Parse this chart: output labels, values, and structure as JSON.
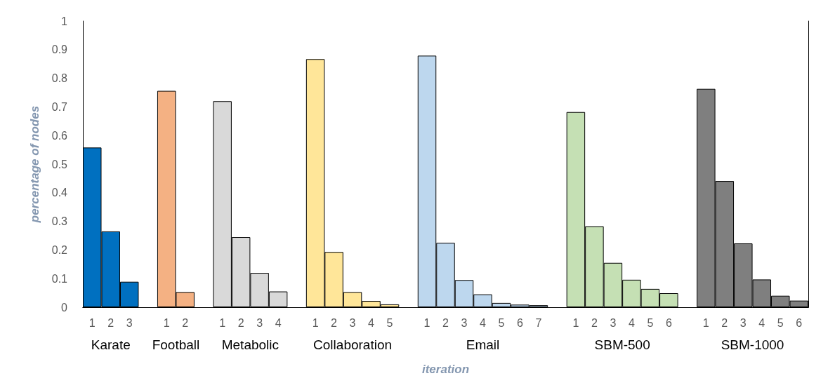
{
  "chart_data": {
    "type": "bar",
    "xlabel": "iteration",
    "ylabel": "percentage of nodes",
    "categories": [
      "1",
      "2",
      "3",
      null,
      "1",
      "2",
      null,
      "1",
      "2",
      "3",
      "4",
      null,
      "1",
      "2",
      "3",
      "4",
      "5",
      null,
      "1",
      "2",
      "3",
      "4",
      "5",
      "6",
      "7",
      null,
      "1",
      "2",
      "3",
      "4",
      "5",
      "6",
      null,
      "1",
      "2",
      "3",
      "4",
      "5",
      "6"
    ],
    "series": [
      {
        "name": "Karate",
        "color": "#0070c0",
        "values": [
          0.558,
          0.265,
          0.089,
          null,
          null,
          null,
          null,
          null,
          null,
          null,
          null,
          null,
          null,
          null,
          null,
          null,
          null,
          null,
          null,
          null,
          null,
          null,
          null,
          null,
          null,
          null,
          null,
          null,
          null,
          null,
          null,
          null,
          null,
          null,
          null,
          null,
          null,
          null,
          null
        ]
      },
      {
        "name": "Football",
        "color": "#f4b183",
        "values": [
          null,
          null,
          null,
          null,
          0.756,
          0.053,
          null,
          null,
          null,
          null,
          null,
          null,
          null,
          null,
          null,
          null,
          null,
          null,
          null,
          null,
          null,
          null,
          null,
          null,
          null,
          null,
          null,
          null,
          null,
          null,
          null,
          null,
          null,
          null,
          null,
          null,
          null,
          null,
          null
        ]
      },
      {
        "name": "Metabolic",
        "color": "#d9d9d9",
        "values": [
          null,
          null,
          null,
          null,
          null,
          null,
          null,
          0.72,
          0.245,
          0.12,
          0.055,
          null,
          null,
          null,
          null,
          null,
          null,
          null,
          null,
          null,
          null,
          null,
          null,
          null,
          null,
          null,
          null,
          null,
          null,
          null,
          null,
          null,
          null,
          null,
          null,
          null,
          null,
          null,
          null
        ]
      },
      {
        "name": "Collaboration",
        "color": "#ffe699",
        "values": [
          null,
          null,
          null,
          null,
          null,
          null,
          null,
          null,
          null,
          null,
          null,
          null,
          0.867,
          0.193,
          0.053,
          0.022,
          0.01,
          null,
          null,
          null,
          null,
          null,
          null,
          null,
          null,
          null,
          null,
          null,
          null,
          null,
          null,
          null,
          null,
          null,
          null,
          null,
          null,
          null,
          null
        ]
      },
      {
        "name": "Email",
        "color": "#bdd7ee",
        "values": [
          null,
          null,
          null,
          null,
          null,
          null,
          null,
          null,
          null,
          null,
          null,
          null,
          null,
          null,
          null,
          null,
          null,
          null,
          0.879,
          0.225,
          0.095,
          0.045,
          0.015,
          0.009,
          0.007,
          null,
          null,
          null,
          null,
          null,
          null,
          null,
          null,
          null,
          null,
          null,
          null,
          null,
          null
        ]
      },
      {
        "name": "SBM-500",
        "color": "#c5e0b4",
        "values": [
          null,
          null,
          null,
          null,
          null,
          null,
          null,
          null,
          null,
          null,
          null,
          null,
          null,
          null,
          null,
          null,
          null,
          null,
          null,
          null,
          null,
          null,
          null,
          null,
          null,
          null,
          0.682,
          0.283,
          0.155,
          0.096,
          0.064,
          0.049,
          null,
          null,
          null,
          null,
          null,
          null,
          null
        ]
      },
      {
        "name": "SBM-1000",
        "color": "#7f7f7f",
        "values": [
          null,
          null,
          null,
          null,
          null,
          null,
          null,
          null,
          null,
          null,
          null,
          null,
          null,
          null,
          null,
          null,
          null,
          null,
          null,
          null,
          null,
          null,
          null,
          null,
          null,
          null,
          null,
          null,
          null,
          null,
          null,
          null,
          null,
          0.763,
          0.441,
          0.223,
          0.097,
          0.04,
          0.023
        ]
      }
    ],
    "ylim": [
      0,
      1
    ],
    "yticks": [
      0,
      0.1,
      0.2,
      0.3,
      0.4,
      0.5,
      0.6,
      0.7,
      0.8,
      0.9,
      1
    ],
    "grid": false
  }
}
